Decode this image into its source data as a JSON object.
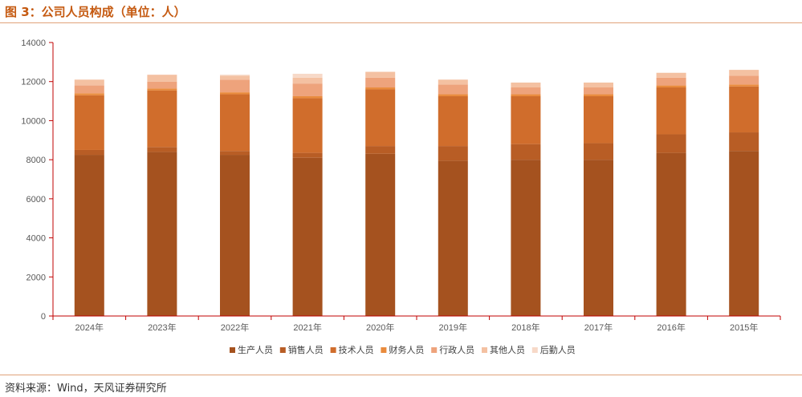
{
  "title": "图 3：公司人员构成（单位：人）",
  "source": "资料来源：Wind，天风证券研究所",
  "chart_data": {
    "type": "bar",
    "stacked": true,
    "categories": [
      "2024年",
      "2023年",
      "2022年",
      "2021年",
      "2020年",
      "2019年",
      "2018年",
      "2017年",
      "2016年",
      "2015年"
    ],
    "ylim": [
      0,
      14000
    ],
    "yticks": [
      0,
      2000,
      4000,
      6000,
      8000,
      10000,
      12000,
      14000
    ],
    "grid": false,
    "legend_position": "bottom",
    "series": [
      {
        "name": "生产人员",
        "color": "#a5521f",
        "values": [
          8250,
          8400,
          8250,
          8100,
          8300,
          7950,
          8000,
          8000,
          8350,
          8450
        ]
      },
      {
        "name": "销售人员",
        "color": "#b85d25",
        "values": [
          250,
          250,
          200,
          250,
          400,
          750,
          800,
          850,
          950,
          950
        ]
      },
      {
        "name": "技术人员",
        "color": "#d06d2c",
        "values": [
          2800,
          2900,
          2900,
          2800,
          2900,
          2550,
          2450,
          2400,
          2400,
          2350
        ]
      },
      {
        "name": "财务人员",
        "color": "#e98b3d",
        "values": [
          100,
          100,
          100,
          100,
          100,
          100,
          100,
          100,
          100,
          100
        ]
      },
      {
        "name": "行政人员",
        "color": "#eea37c",
        "values": [
          400,
          350,
          650,
          650,
          500,
          500,
          350,
          350,
          400,
          450
        ]
      },
      {
        "name": "其他人员",
        "color": "#f4c1a2",
        "values": [
          300,
          350,
          200,
          300,
          300,
          250,
          250,
          250,
          250,
          300
        ]
      },
      {
        "name": "后勤人员",
        "color": "#f7d9c8",
        "values": [
          0,
          0,
          50,
          200,
          0,
          0,
          0,
          0,
          0,
          0
        ]
      }
    ]
  }
}
